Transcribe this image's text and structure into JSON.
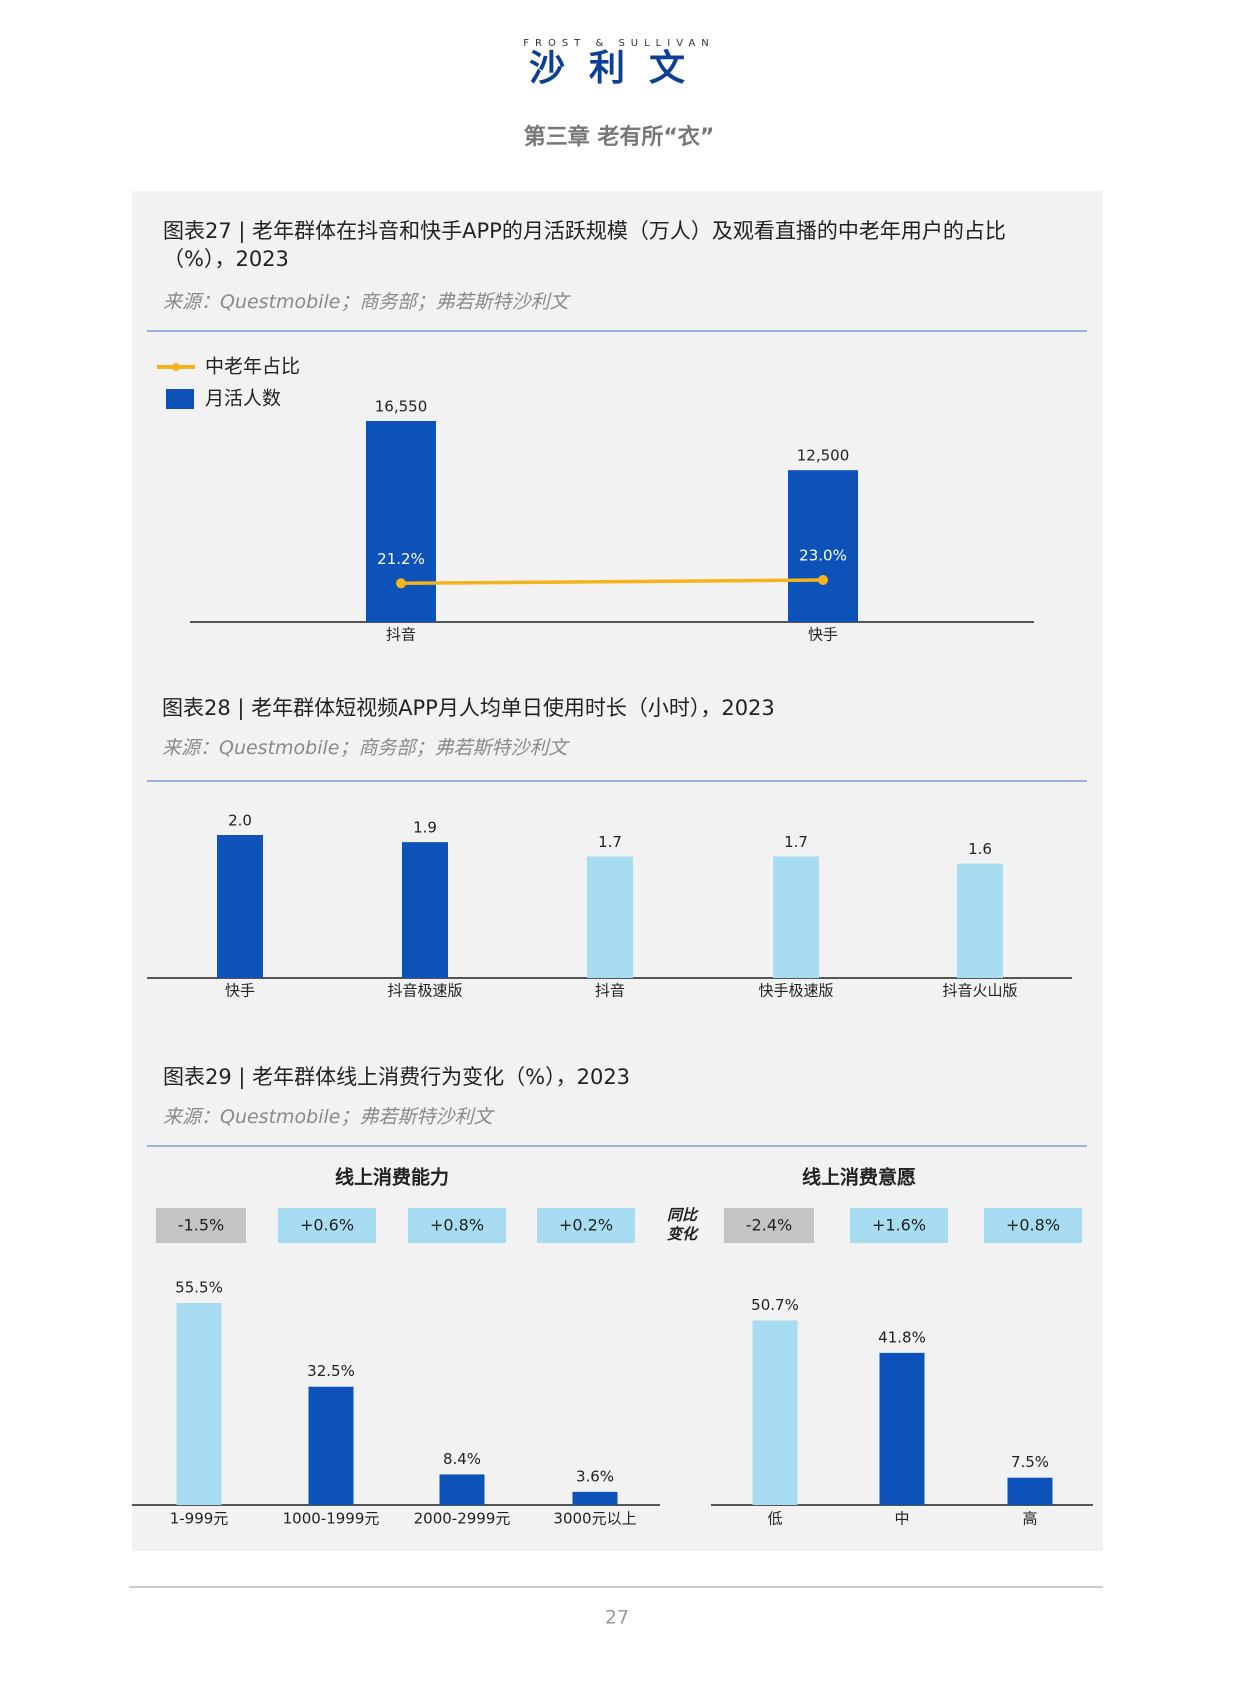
{
  "header": {
    "brand_en": "FROST & SULLIVAN",
    "brand_cn": "沙利文",
    "chapter": "第三章 老有所“衣”"
  },
  "chart_data": [
    {
      "type": "bar_line",
      "title": "图表27 | 老年群体在抖音和快手APP的月活跃规模（万人）及观看直播的中老年用户的占比（%），2023",
      "source": "来源：Questmobile；商务部；弗若斯特沙利文",
      "categories": [
        "抖音",
        "快手"
      ],
      "series": [
        {
          "name": "中老年占比",
          "color": "#f2b31d",
          "axis": "y2",
          "values": [
            21.2,
            23.0
          ],
          "value_labels": [
            "21.2%",
            "23.0%"
          ]
        },
        {
          "name": "月活人数",
          "color": "#0d52b8",
          "values": [
            16550,
            12500
          ],
          "value_labels": [
            "16,550",
            "12,500"
          ]
        }
      ]
    },
    {
      "type": "bar",
      "title": "图表28 | 老年群体短视频APP月人均单日使用时长（小时），2023",
      "source": "来源：Questmobile；商务部；弗若斯特沙利文",
      "categories": [
        "快手",
        "抖音极速版",
        "抖音",
        "快手极速版",
        "抖音火山版"
      ],
      "values": [
        2.0,
        1.9,
        1.7,
        1.7,
        1.6
      ],
      "value_labels": [
        "2.0",
        "1.9",
        "1.7",
        "1.7",
        "1.6"
      ],
      "colors": [
        "#0d52b8",
        "#0d52b8",
        "#a8dcf0",
        "#a8dcf0",
        "#a8dcf0"
      ]
    },
    {
      "type": "bar_panels",
      "title": "图表29 | 老年群体线上消费行为变化（%），2023",
      "source": "来源：Questmobile；弗若斯特沙利文",
      "change_label": "同比变化",
      "panels": [
        {
          "subtitle": "线上消费能力",
          "categories": [
            "1-999元",
            "1000-1999元",
            "2000-2999元",
            "3000元以上"
          ],
          "values": [
            55.5,
            32.5,
            8.4,
            3.6
          ],
          "value_labels": [
            "55.5%",
            "32.5%",
            "8.4%",
            "3.6%"
          ],
          "colors": [
            "#a8dcf0",
            "#0d52b8",
            "#0d52b8",
            "#0d52b8"
          ],
          "changes": [
            -1.5,
            0.6,
            0.8,
            0.2
          ],
          "change_labels": [
            "-1.5%",
            "+0.6%",
            "+0.8%",
            "+0.2%"
          ],
          "change_colors": [
            "#c4c4c4",
            "#a8dcf0",
            "#a8dcf0",
            "#a8dcf0"
          ]
        },
        {
          "subtitle": "线上消费意愿",
          "categories": [
            "低",
            "中",
            "高"
          ],
          "values": [
            50.7,
            41.8,
            7.5
          ],
          "value_labels": [
            "50.7%",
            "41.8%",
            "7.5%"
          ],
          "colors": [
            "#a8dcf0",
            "#0d52b8",
            "#0d52b8"
          ],
          "changes": [
            -2.4,
            1.6,
            0.8
          ],
          "change_labels": [
            "-2.4%",
            "+1.6%",
            "+0.8%"
          ],
          "change_colors": [
            "#c4c4c4",
            "#a8dcf0",
            "#a8dcf0"
          ]
        }
      ]
    }
  ],
  "page_number": "27"
}
